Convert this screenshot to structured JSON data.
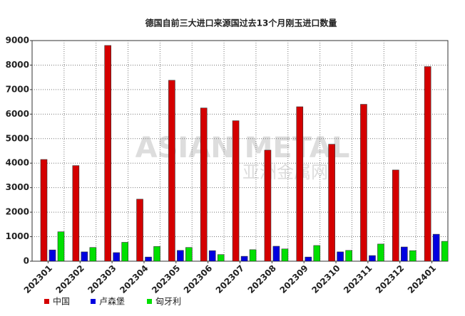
{
  "chart_data": {
    "type": "bar",
    "title": "德国自前三大进口来源国过去13个月刚玉进口数量",
    "watermark": [
      "ASIAN METAL",
      "亚洲金属网"
    ],
    "categories": [
      "202301",
      "202302",
      "202303",
      "202304",
      "202305",
      "202306",
      "202307",
      "202308",
      "202309",
      "202310",
      "202311",
      "202312",
      "202401"
    ],
    "series": [
      {
        "name": "中国",
        "color": "#d40000",
        "values": [
          4150,
          3900,
          8800,
          2530,
          7380,
          6250,
          5730,
          4530,
          6300,
          4770,
          6400,
          3720,
          7940
        ]
      },
      {
        "name": "卢森堡",
        "color": "#0000e0",
        "values": [
          460,
          380,
          350,
          170,
          440,
          430,
          200,
          610,
          170,
          380,
          230,
          580,
          1100
        ]
      },
      {
        "name": "匈牙利",
        "color": "#00e000",
        "values": [
          1200,
          560,
          770,
          600,
          560,
          270,
          470,
          500,
          640,
          440,
          700,
          430,
          810
        ]
      }
    ],
    "ylim": [
      0,
      9000
    ],
    "yticks": [
      0,
      1000,
      2000,
      3000,
      4000,
      5000,
      6000,
      7000,
      8000,
      9000
    ],
    "grid": true,
    "legend": "bottom"
  }
}
